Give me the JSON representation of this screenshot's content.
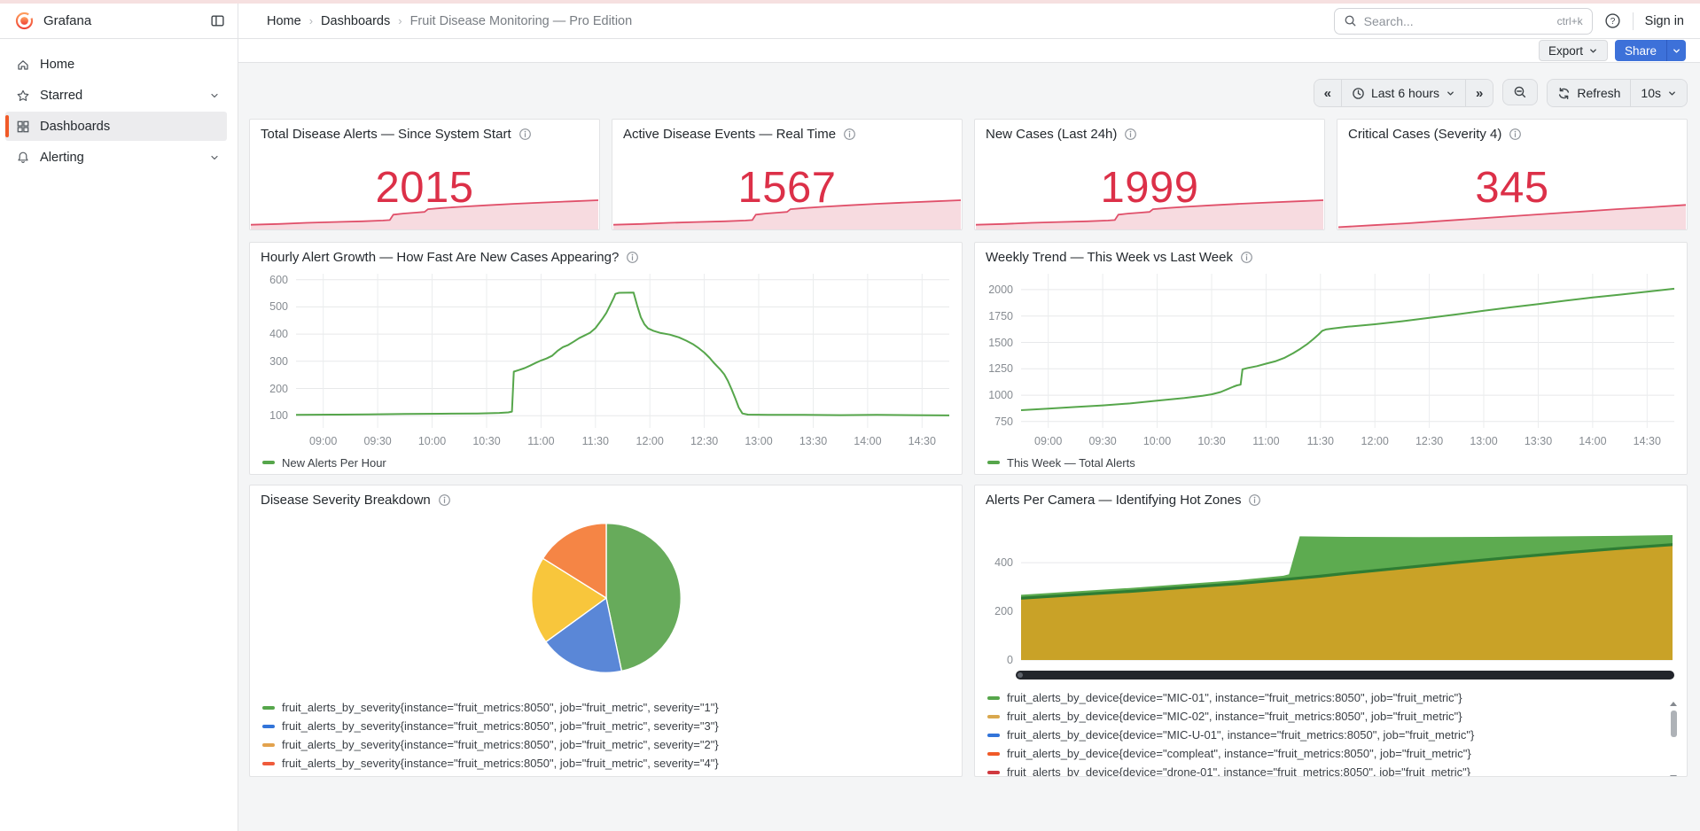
{
  "brand": {
    "name": "Grafana"
  },
  "header": {
    "breadcrumb": [
      "Home",
      "Dashboards",
      "Fruit Disease Monitoring — Pro Edition"
    ],
    "search_placeholder": "Search...",
    "search_shortcut": "ctrl+k",
    "sign_in": "Sign in"
  },
  "sidebar": {
    "items": [
      {
        "label": "Home"
      },
      {
        "label": "Starred"
      },
      {
        "label": "Dashboards"
      },
      {
        "label": "Alerting"
      }
    ]
  },
  "toolbar": {
    "export_label": "Export",
    "share_label": "Share"
  },
  "timebar": {
    "range_label": "Last 6 hours",
    "refresh_label": "Refresh",
    "interval_label": "10s"
  },
  "stats": [
    {
      "title": "Total Disease Alerts — Since System Start",
      "value": "2015"
    },
    {
      "title": "Active Disease Events — Real Time",
      "value": "1567"
    },
    {
      "title": "New Cases (Last 24h)",
      "value": "1999"
    },
    {
      "title": "Critical Cases (Severity 4)",
      "value": "345"
    }
  ],
  "panels": {
    "hourly": {
      "title": "Hourly Alert Growth — How Fast Are New Cases Appearing?",
      "legend": [
        {
          "label": "New Alerts Per Hour",
          "color": "#56a64b"
        }
      ]
    },
    "weekly": {
      "title": "Weekly Trend — This Week vs Last Week",
      "legend": [
        {
          "label": "This Week — Total Alerts",
          "color": "#56a64b"
        }
      ]
    },
    "pie": {
      "title": "Disease Severity Breakdown",
      "legend": [
        {
          "label": "fruit_alerts_by_severity{instance=\"fruit_metrics:8050\", job=\"fruit_metric\", severity=\"1\"}",
          "color": "#56a64b"
        },
        {
          "label": "fruit_alerts_by_severity{instance=\"fruit_metrics:8050\", job=\"fruit_metric\", severity=\"3\"}",
          "color": "#3274d9"
        },
        {
          "label": "fruit_alerts_by_severity{instance=\"fruit_metrics:8050\", job=\"fruit_metric\", severity=\"2\"}",
          "color": "#e2a24d"
        },
        {
          "label": "fruit_alerts_by_severity{instance=\"fruit_metrics:8050\", job=\"fruit_metric\", severity=\"4\"}",
          "color": "#ef5b3b"
        }
      ]
    },
    "cameras": {
      "title": "Alerts Per Camera — Identifying Hot Zones",
      "legend": [
        {
          "label": "fruit_alerts_by_device{device=\"MIC-01\", instance=\"fruit_metrics:8050\", job=\"fruit_metric\"}",
          "color": "#56a64b"
        },
        {
          "label": "fruit_alerts_by_device{device=\"MIC-02\", instance=\"fruit_metrics:8050\", job=\"fruit_metric\"}",
          "color": "#d9a84e"
        },
        {
          "label": "fruit_alerts_by_device{device=\"MIC-U-01\", instance=\"fruit_metrics:8050\", job=\"fruit_metric\"}",
          "color": "#3274d9"
        },
        {
          "label": "fruit_alerts_by_device{device=\"compleat\", instance=\"fruit_metrics:8050\", job=\"fruit_metric\"}",
          "color": "#f05a28"
        },
        {
          "label": "fruit_alerts_by_device{device=\"drone-01\", instance=\"fruit_metrics:8050\", job=\"fruit_metric\"}",
          "color": "#d0393f"
        }
      ]
    }
  },
  "charts": {
    "spark_step": {
      "type": "spark",
      "line": "#e0506a",
      "fill": "#f7dbe0",
      "points": [
        [
          0,
          12
        ],
        [
          8,
          14
        ],
        [
          16,
          17
        ],
        [
          24,
          19
        ],
        [
          32,
          21
        ],
        [
          38,
          23
        ],
        [
          40,
          24
        ],
        [
          41,
          38
        ],
        [
          44,
          41
        ],
        [
          47,
          43
        ],
        [
          50,
          45
        ],
        [
          51,
          52
        ],
        [
          55,
          55
        ],
        [
          60,
          58
        ],
        [
          68,
          62
        ],
        [
          76,
          66
        ],
        [
          84,
          69
        ],
        [
          92,
          72
        ],
        [
          100,
          75
        ]
      ]
    },
    "spark_smooth": {
      "type": "spark",
      "line": "#e0506a",
      "fill": "#f7dbe0",
      "points": [
        [
          0,
          6
        ],
        [
          10,
          11
        ],
        [
          20,
          16
        ],
        [
          30,
          22
        ],
        [
          40,
          28
        ],
        [
          50,
          34
        ],
        [
          60,
          40
        ],
        [
          70,
          46
        ],
        [
          80,
          52
        ],
        [
          90,
          57
        ],
        [
          100,
          63
        ]
      ]
    },
    "hourly": {
      "type": "line",
      "name": "hourly-alert-growth-plot",
      "color": "#56a64b",
      "pad": {
        "l": 46,
        "r": 6,
        "t": 8,
        "b": 26
      },
      "x_domain": [
        0,
        360
      ],
      "y_domain": [
        55,
        622
      ],
      "y_ticks": [
        100,
        200,
        300,
        400,
        500,
        600
      ],
      "x_ticks": [
        {
          "m": 15,
          "label": "09:00"
        },
        {
          "m": 45,
          "label": "09:30"
        },
        {
          "m": 75,
          "label": "10:00"
        },
        {
          "m": 105,
          "label": "10:30"
        },
        {
          "m": 135,
          "label": "11:00"
        },
        {
          "m": 165,
          "label": "11:30"
        },
        {
          "m": 195,
          "label": "12:00"
        },
        {
          "m": 225,
          "label": "12:30"
        },
        {
          "m": 255,
          "label": "13:00"
        },
        {
          "m": 285,
          "label": "13:30"
        },
        {
          "m": 315,
          "label": "14:00"
        },
        {
          "m": 345,
          "label": "14:30"
        }
      ],
      "points": [
        [
          0,
          103
        ],
        [
          20,
          104
        ],
        [
          40,
          105
        ],
        [
          60,
          106
        ],
        [
          80,
          107
        ],
        [
          100,
          108
        ],
        [
          112,
          110
        ],
        [
          117,
          112
        ],
        [
          119,
          115
        ],
        [
          120,
          262
        ],
        [
          123,
          268
        ],
        [
          126,
          275
        ],
        [
          129,
          284
        ],
        [
          132,
          294
        ],
        [
          135,
          303
        ],
        [
          138,
          310
        ],
        [
          141,
          320
        ],
        [
          144,
          338
        ],
        [
          147,
          352
        ],
        [
          150,
          360
        ],
        [
          153,
          372
        ],
        [
          156,
          385
        ],
        [
          159,
          395
        ],
        [
          162,
          405
        ],
        [
          165,
          422
        ],
        [
          167,
          440
        ],
        [
          169,
          458
        ],
        [
          171,
          478
        ],
        [
          173,
          505
        ],
        [
          175,
          532
        ],
        [
          176,
          548
        ],
        [
          178,
          552
        ],
        [
          186,
          553
        ],
        [
          188,
          505
        ],
        [
          190,
          462
        ],
        [
          192,
          436
        ],
        [
          194,
          421
        ],
        [
          197,
          412
        ],
        [
          201,
          404
        ],
        [
          206,
          398
        ],
        [
          211,
          388
        ],
        [
          215,
          376
        ],
        [
          219,
          362
        ],
        [
          222,
          348
        ],
        [
          225,
          332
        ],
        [
          228,
          312
        ],
        [
          230,
          296
        ],
        [
          232,
          282
        ],
        [
          234,
          268
        ],
        [
          236,
          252
        ],
        [
          238,
          228
        ],
        [
          240,
          198
        ],
        [
          242,
          165
        ],
        [
          244,
          130
        ],
        [
          246,
          108
        ],
        [
          249,
          104
        ],
        [
          260,
          103
        ],
        [
          280,
          103
        ],
        [
          300,
          102
        ],
        [
          320,
          103
        ],
        [
          340,
          102
        ],
        [
          360,
          101
        ]
      ]
    },
    "weekly": {
      "type": "line",
      "name": "weekly-trend-plot",
      "color": "#56a64b",
      "pad": {
        "l": 46,
        "r": 6,
        "t": 8,
        "b": 26
      },
      "x_domain": [
        0,
        360
      ],
      "y_domain": [
        690,
        2150
      ],
      "y_ticks": [
        750,
        1000,
        1250,
        1500,
        1750,
        2000
      ],
      "x_ticks": [
        {
          "m": 15,
          "label": "09:00"
        },
        {
          "m": 45,
          "label": "09:30"
        },
        {
          "m": 75,
          "label": "10:00"
        },
        {
          "m": 105,
          "label": "10:30"
        },
        {
          "m": 135,
          "label": "11:00"
        },
        {
          "m": 165,
          "label": "11:30"
        },
        {
          "m": 195,
          "label": "12:00"
        },
        {
          "m": 225,
          "label": "12:30"
        },
        {
          "m": 255,
          "label": "13:00"
        },
        {
          "m": 285,
          "label": "13:30"
        },
        {
          "m": 315,
          "label": "14:00"
        },
        {
          "m": 345,
          "label": "14:30"
        }
      ],
      "points": [
        [
          0,
          858
        ],
        [
          15,
          872
        ],
        [
          30,
          888
        ],
        [
          45,
          903
        ],
        [
          60,
          922
        ],
        [
          75,
          948
        ],
        [
          90,
          973
        ],
        [
          100,
          995
        ],
        [
          105,
          1008
        ],
        [
          110,
          1030
        ],
        [
          114,
          1058
        ],
        [
          117,
          1080
        ],
        [
          119,
          1093
        ],
        [
          121,
          1100
        ],
        [
          122,
          1245
        ],
        [
          125,
          1258
        ],
        [
          130,
          1275
        ],
        [
          135,
          1298
        ],
        [
          140,
          1320
        ],
        [
          145,
          1352
        ],
        [
          150,
          1398
        ],
        [
          154,
          1440
        ],
        [
          158,
          1488
        ],
        [
          161,
          1530
        ],
        [
          164,
          1575
        ],
        [
          166,
          1610
        ],
        [
          168,
          1622
        ],
        [
          172,
          1632
        ],
        [
          180,
          1648
        ],
        [
          195,
          1672
        ],
        [
          210,
          1700
        ],
        [
          225,
          1732
        ],
        [
          240,
          1765
        ],
        [
          255,
          1800
        ],
        [
          270,
          1832
        ],
        [
          285,
          1862
        ],
        [
          300,
          1895
        ],
        [
          315,
          1925
        ],
        [
          330,
          1952
        ],
        [
          345,
          1980
        ],
        [
          360,
          2008
        ]
      ]
    },
    "pie": {
      "type": "pie",
      "size": 172,
      "start_angle": 0,
      "slices": [
        {
          "label": "severity 1",
          "value": 46.7,
          "color": "#67ab5b"
        },
        {
          "label": "severity 3",
          "value": 18.3,
          "color": "#5a87d7"
        },
        {
          "label": "severity 2",
          "value": 18.9,
          "color": "#f8c63c"
        },
        {
          "label": "severity 4",
          "value": 16.1,
          "color": "#f58545"
        }
      ]
    },
    "cameras": {
      "type": "stacked_area",
      "name": "alerts-per-camera-plot",
      "pad": {
        "l": 46,
        "r": 8,
        "t": 8,
        "b": 4
      },
      "x_domain": [
        0,
        360
      ],
      "y_domain": [
        0,
        575
      ],
      "y_ticks": [
        0,
        200,
        400
      ],
      "x_ticks": [],
      "series": [
        {
          "name": "total-top",
          "color": "#5dab50",
          "points": [
            [
              0,
              268
            ],
            [
              30,
              282
            ],
            [
              60,
              296
            ],
            [
              90,
              312
            ],
            [
              120,
              328
            ],
            [
              145,
              346
            ],
            [
              148,
              352
            ],
            [
              151,
              430
            ],
            [
              154,
              508
            ],
            [
              180,
              506
            ],
            [
              220,
              505
            ],
            [
              260,
              506
            ],
            [
              300,
              508
            ],
            [
              330,
              510
            ],
            [
              360,
              513
            ]
          ]
        },
        {
          "name": "mid-green",
          "color": "#2f7d33",
          "points": [
            [
              0,
              260
            ],
            [
              30,
              274
            ],
            [
              60,
              288
            ],
            [
              90,
              304
            ],
            [
              120,
              320
            ],
            [
              150,
              340
            ],
            [
              165,
              350
            ],
            [
              180,
              362
            ],
            [
              210,
              384
            ],
            [
              240,
              406
            ],
            [
              270,
              427
            ],
            [
              300,
              446
            ],
            [
              330,
              464
            ],
            [
              360,
              480
            ]
          ]
        },
        {
          "name": "base-olive",
          "color": "#c9a227",
          "points": [
            [
              0,
              248
            ],
            [
              30,
              262
            ],
            [
              60,
              276
            ],
            [
              90,
              292
            ],
            [
              120,
              308
            ],
            [
              150,
              328
            ],
            [
              165,
              338
            ],
            [
              180,
              350
            ],
            [
              210,
              372
            ],
            [
              240,
              394
            ],
            [
              270,
              415
            ],
            [
              300,
              434
            ],
            [
              330,
              452
            ],
            [
              360,
              468
            ]
          ]
        }
      ]
    }
  }
}
